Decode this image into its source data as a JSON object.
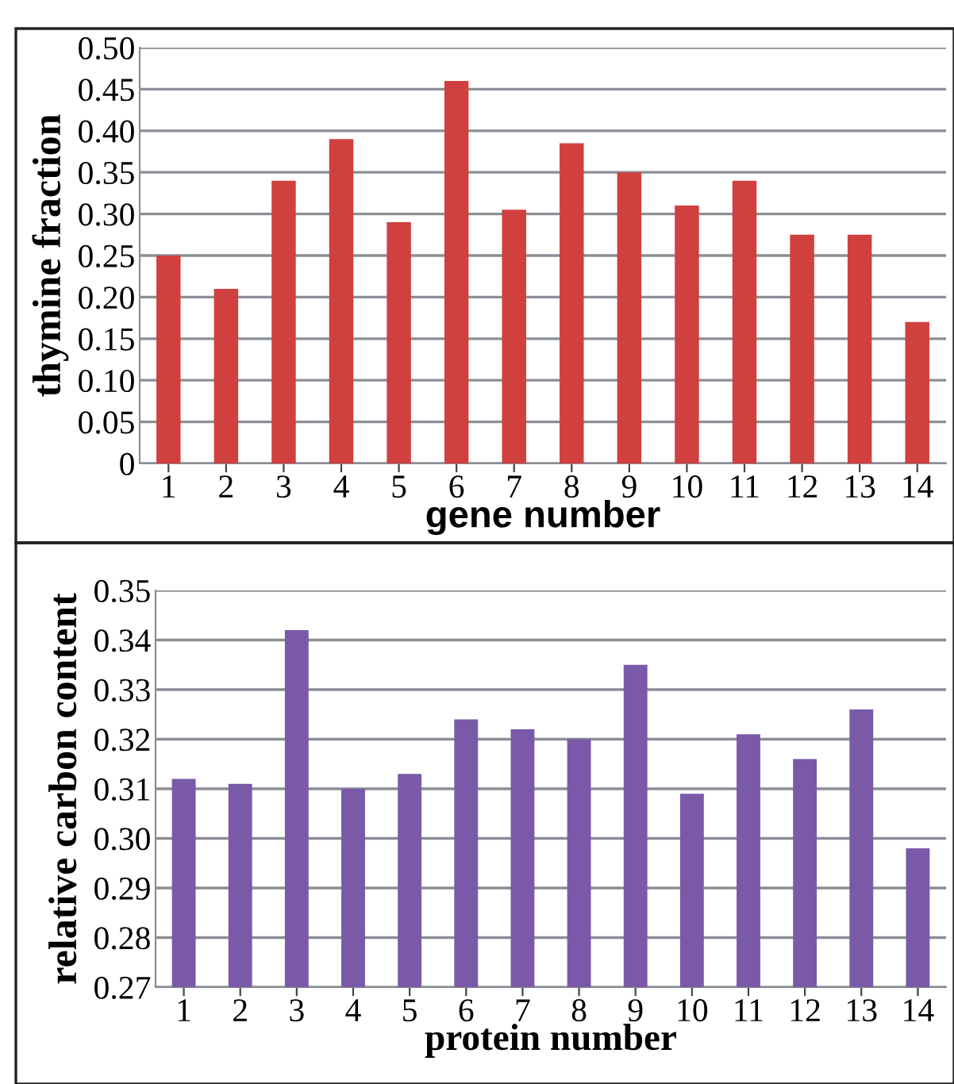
{
  "chart_data": [
    {
      "type": "bar",
      "xlabel": "gene number",
      "ylabel": "thymine fraction",
      "categories": [
        "1",
        "2",
        "3",
        "4",
        "5",
        "6",
        "7",
        "8",
        "9",
        "10",
        "11",
        "12",
        "13",
        "14"
      ],
      "series": [
        {
          "color": "#d0403f",
          "values": [
            0.25,
            0.21,
            0.34,
            0.39,
            0.29,
            0.46,
            0.305,
            0.385,
            0.35,
            0.31,
            0.34,
            0.275,
            0.275,
            0.17
          ]
        }
      ],
      "ylim": [
        0,
        0.5
      ],
      "yticks": [
        0,
        {
          "value": 0.05,
          "label": "0.05"
        },
        {
          "value": 0.1,
          "label": "0.10"
        },
        {
          "value": 0.15,
          "label": "0.15"
        },
        {
          "value": 0.2,
          "label": "0.20"
        },
        {
          "value": 0.25,
          "label": "0.25"
        },
        {
          "value": 0.3,
          "label": "0.30"
        },
        {
          "value": 0.35,
          "label": "0.35"
        },
        {
          "value": 0.4,
          "label": "0.40"
        },
        {
          "value": 0.45,
          "label": "0.45"
        },
        {
          "value": 0.5,
          "label": "0.50"
        }
      ],
      "grid": "y",
      "legend": false
    },
    {
      "type": "bar",
      "xlabel": "protein number",
      "ylabel": "relative carbon content",
      "categories": [
        "1",
        "2",
        "3",
        "4",
        "5",
        "6",
        "7",
        "8",
        "9",
        "10",
        "11",
        "12",
        "13",
        "14"
      ],
      "series": [
        {
          "color": "#7a5aa8",
          "values": [
            0.312,
            0.311,
            0.342,
            0.31,
            0.313,
            0.324,
            0.322,
            0.32,
            0.335,
            0.309,
            0.321,
            0.316,
            0.326,
            0.298
          ]
        }
      ],
      "ylim": [
        0.27,
        0.35
      ],
      "yticks": [
        {
          "value": 0.27,
          "label": "0.27"
        },
        {
          "value": 0.28,
          "label": "0.28"
        },
        {
          "value": 0.29,
          "label": "0.29"
        },
        {
          "value": 0.3,
          "label": "0.30"
        },
        {
          "value": 0.31,
          "label": "0.31"
        },
        {
          "value": 0.32,
          "label": "0.32"
        },
        {
          "value": 0.33,
          "label": "0.33"
        },
        {
          "value": 0.34,
          "label": "0.34"
        },
        {
          "value": 0.35,
          "label": "0.35"
        }
      ],
      "grid": "y",
      "legend": false
    }
  ]
}
